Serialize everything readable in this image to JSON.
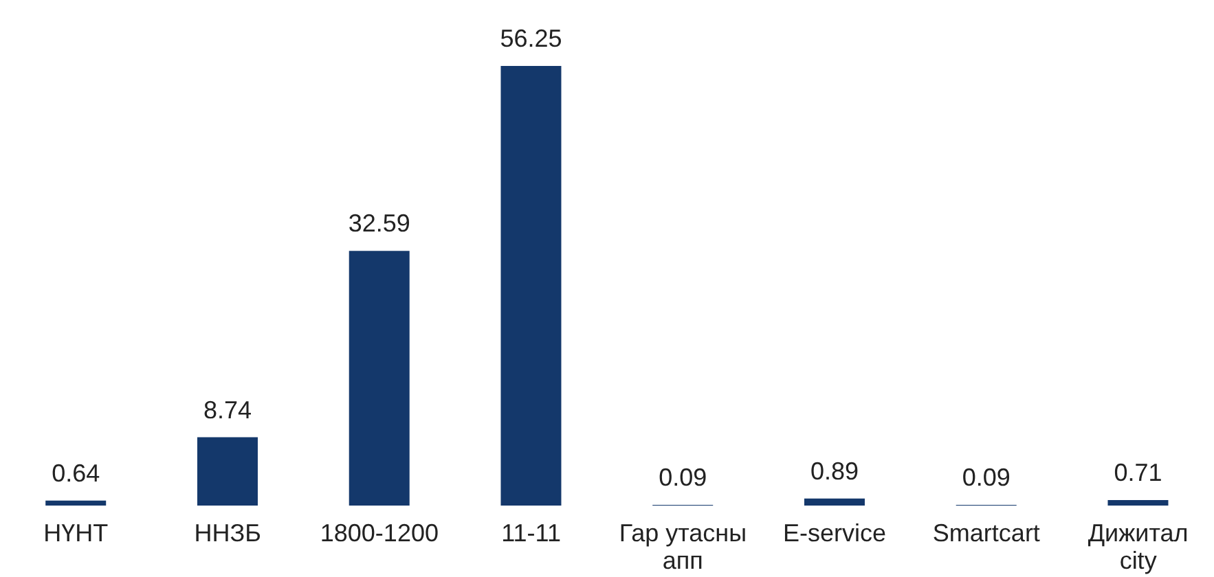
{
  "chart_data": {
    "type": "bar",
    "categories": [
      "НҮНТ",
      "ННЗБ",
      "1800-1200",
      "11-11",
      "Гар утасны апп",
      "E-service",
      "Smartcart",
      "Дижитал city"
    ],
    "values": [
      0.64,
      8.74,
      32.59,
      56.25,
      0.09,
      0.89,
      0.09,
      0.71
    ],
    "color": "#14386b",
    "data_labels": true,
    "grid": false,
    "legend": false
  }
}
